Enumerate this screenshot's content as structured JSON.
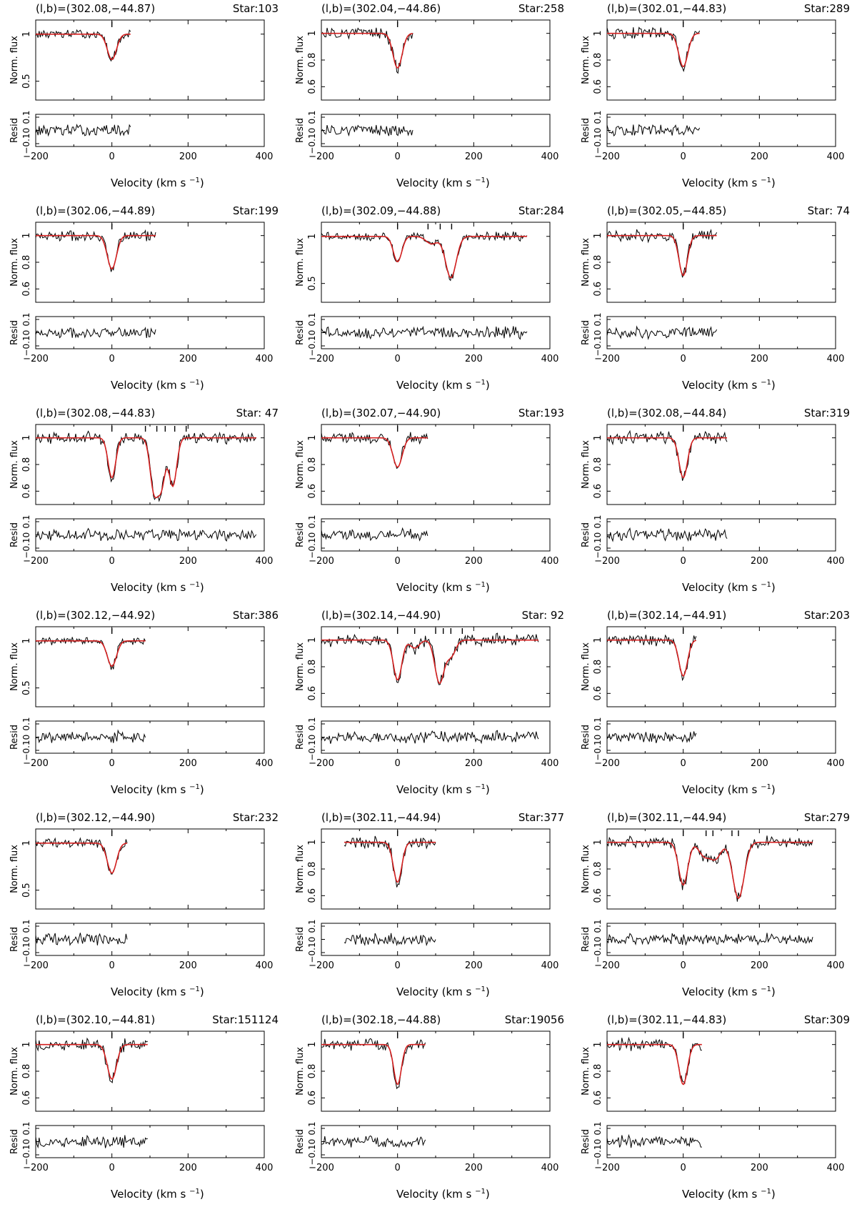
{
  "figure": {
    "yaxis_label_top": "Norm. flux",
    "yaxis_label_bottom": "Resid",
    "xaxis_label_text": "Velocity (km s",
    "xaxis_label_unit_exp": "−1",
    "xaxis_label_close": ")",
    "x_ticks": [
      "−200",
      "0",
      "200",
      "400"
    ],
    "resid_ticks": [
      "−0.1",
      "0",
      "0.1"
    ]
  },
  "colors": {
    "data": "#000000",
    "model": "#d42020",
    "axes": "#000000"
  },
  "chart_data": [
    {
      "type": "line",
      "title": "(l,b)=(302.08,−44.87)",
      "star": "Star:103",
      "xlim": [
        -200,
        400
      ],
      "ylim": [
        0.3,
        1.15
      ],
      "yticks": [
        {
          "v": 0.5,
          "label": "0.5"
        },
        {
          "v": 1,
          "label": "1"
        }
      ],
      "vrange": [
        -200,
        50
      ],
      "components": [
        0
      ],
      "absorptions": [
        {
          "v": 0,
          "depth": 0.27,
          "width": 12
        }
      ]
    },
    {
      "type": "line",
      "title": "(l,b)=(302.04,−44.86)",
      "star": "Star:258",
      "xlim": [
        -200,
        400
      ],
      "ylim": [
        0.5,
        1.1
      ],
      "yticks": [
        {
          "v": 0.6,
          "label": "0.6"
        },
        {
          "v": 0.8,
          "label": "0.8"
        },
        {
          "v": 1,
          "label": "1"
        }
      ],
      "vrange": [
        -200,
        40
      ],
      "components": [
        0
      ],
      "absorptions": [
        {
          "v": 0,
          "depth": 0.26,
          "width": 12
        }
      ]
    },
    {
      "type": "line",
      "title": "(l,b)=(302.01,−44.83)",
      "star": "Star:289",
      "xlim": [
        -200,
        400
      ],
      "ylim": [
        0.5,
        1.1
      ],
      "yticks": [
        {
          "v": 0.6,
          "label": "0.6"
        },
        {
          "v": 0.8,
          "label": "0.8"
        },
        {
          "v": 1,
          "label": "1"
        }
      ],
      "vrange": [
        -200,
        45
      ],
      "components": [
        0
      ],
      "absorptions": [
        {
          "v": 0,
          "depth": 0.25,
          "width": 12
        }
      ]
    },
    {
      "type": "line",
      "title": "(l,b)=(302.06,−44.89)",
      "star": "Star:199",
      "xlim": [
        -200,
        400
      ],
      "ylim": [
        0.5,
        1.1
      ],
      "yticks": [
        {
          "v": 0.6,
          "label": "0.6"
        },
        {
          "v": 0.8,
          "label": "0.8"
        },
        {
          "v": 1,
          "label": "1"
        }
      ],
      "vrange": [
        -200,
        115
      ],
      "components": [
        0
      ],
      "absorptions": [
        {
          "v": 0,
          "depth": 0.25,
          "width": 12
        }
      ]
    },
    {
      "type": "line",
      "title": "(l,b)=(302.09,−44.88)",
      "star": "Star:284",
      "xlim": [
        -200,
        400
      ],
      "ylim": [
        0.3,
        1.15
      ],
      "yticks": [
        {
          "v": 0.5,
          "label": "0.5"
        },
        {
          "v": 1,
          "label": "1"
        }
      ],
      "vrange": [
        -200,
        340
      ],
      "components": [
        0,
        80,
        112,
        142
      ],
      "absorptions": [
        {
          "v": 0,
          "depth": 0.27,
          "width": 11
        },
        {
          "v": 90,
          "depth": 0.08,
          "width": 15
        },
        {
          "v": 140,
          "depth": 0.44,
          "width": 14
        }
      ]
    },
    {
      "type": "line",
      "title": "(l,b)=(302.05,−44.85)",
      "star": "Star: 74",
      "xlim": [
        -200,
        400
      ],
      "ylim": [
        0.5,
        1.1
      ],
      "yticks": [
        {
          "v": 0.6,
          "label": "0.6"
        },
        {
          "v": 0.8,
          "label": "0.8"
        },
        {
          "v": 1,
          "label": "1"
        }
      ],
      "vrange": [
        -200,
        90
      ],
      "components": [
        0
      ],
      "absorptions": [
        {
          "v": 0,
          "depth": 0.3,
          "width": 11
        }
      ]
    },
    {
      "type": "line",
      "title": "(l,b)=(302.08,−44.83)",
      "star": "Star: 47",
      "xlim": [
        -200,
        400
      ],
      "ylim": [
        0.5,
        1.1
      ],
      "yticks": [
        {
          "v": 0.6,
          "label": "0.6"
        },
        {
          "v": 0.8,
          "label": "0.8"
        },
        {
          "v": 1,
          "label": "1"
        }
      ],
      "vrange": [
        -200,
        380
      ],
      "components": [
        0,
        88,
        118,
        140,
        165,
        195
      ],
      "absorptions": [
        {
          "v": 0,
          "depth": 0.3,
          "width": 10
        },
        {
          "v": 110,
          "depth": 0.38,
          "width": 10
        },
        {
          "v": 130,
          "depth": 0.35,
          "width": 10
        },
        {
          "v": 160,
          "depth": 0.36,
          "width": 10
        }
      ]
    },
    {
      "type": "line",
      "title": "(l,b)=(302.07,−44.90)",
      "star": "Star:193",
      "xlim": [
        -200,
        400
      ],
      "ylim": [
        0.5,
        1.1
      ],
      "yticks": [
        {
          "v": 0.6,
          "label": "0.6"
        },
        {
          "v": 0.8,
          "label": "0.8"
        },
        {
          "v": 1,
          "label": "1"
        }
      ],
      "vrange": [
        -200,
        80
      ],
      "components": [
        0
      ],
      "absorptions": [
        {
          "v": 0,
          "depth": 0.22,
          "width": 12
        }
      ]
    },
    {
      "type": "line",
      "title": "(l,b)=(302.08,−44.84)",
      "star": "Star:319",
      "xlim": [
        -200,
        400
      ],
      "ylim": [
        0.5,
        1.1
      ],
      "yticks": [
        {
          "v": 0.6,
          "label": "0.6"
        },
        {
          "v": 0.8,
          "label": "0.8"
        },
        {
          "v": 1,
          "label": "1"
        }
      ],
      "vrange": [
        -200,
        115
      ],
      "components": [
        0
      ],
      "absorptions": [
        {
          "v": 0,
          "depth": 0.3,
          "width": 11
        }
      ]
    },
    {
      "type": "line",
      "title": "(l,b)=(302.12,−44.92)",
      "star": "Star:386",
      "xlim": [
        -200,
        400
      ],
      "ylim": [
        0.3,
        1.15
      ],
      "yticks": [
        {
          "v": 0.5,
          "label": "0.5"
        },
        {
          "v": 1,
          "label": "1"
        }
      ],
      "vrange": [
        -200,
        90
      ],
      "components": [
        0
      ],
      "absorptions": [
        {
          "v": 0,
          "depth": 0.27,
          "width": 12
        }
      ]
    },
    {
      "type": "line",
      "title": "(l,b)=(302.14,−44.90)",
      "star": "Star: 92",
      "xlim": [
        -200,
        400
      ],
      "ylim": [
        0.5,
        1.1
      ],
      "yticks": [
        {
          "v": 0.6,
          "label": "0.6"
        },
        {
          "v": 0.8,
          "label": "0.8"
        },
        {
          "v": 1,
          "label": "1"
        }
      ],
      "vrange": [
        -200,
        370
      ],
      "components": [
        0,
        45,
        100,
        120,
        140,
        170
      ],
      "absorptions": [
        {
          "v": 0,
          "depth": 0.3,
          "width": 11
        },
        {
          "v": 45,
          "depth": 0.06,
          "width": 12
        },
        {
          "v": 110,
          "depth": 0.32,
          "width": 12
        },
        {
          "v": 140,
          "depth": 0.12,
          "width": 12
        }
      ]
    },
    {
      "type": "line",
      "title": "(l,b)=(302.14,−44.91)",
      "star": "Star:203",
      "xlim": [
        -200,
        400
      ],
      "ylim": [
        0.5,
        1.1
      ],
      "yticks": [
        {
          "v": 0.6,
          "label": "0.6"
        },
        {
          "v": 0.8,
          "label": "0.8"
        },
        {
          "v": 1,
          "label": "1"
        }
      ],
      "vrange": [
        -200,
        35
      ],
      "components": [
        0
      ],
      "absorptions": [
        {
          "v": 0,
          "depth": 0.27,
          "width": 11
        }
      ]
    },
    {
      "type": "line",
      "title": "(l,b)=(302.12,−44.90)",
      "star": "Star:232",
      "xlim": [
        -200,
        400
      ],
      "ylim": [
        0.3,
        1.15
      ],
      "yticks": [
        {
          "v": 0.5,
          "label": "0.5"
        },
        {
          "v": 1,
          "label": "1"
        }
      ],
      "vrange": [
        -200,
        40
      ],
      "components": [
        0
      ],
      "absorptions": [
        {
          "v": 0,
          "depth": 0.32,
          "width": 12
        }
      ]
    },
    {
      "type": "line",
      "title": "(l,b)=(302.11,−44.94)",
      "star": "Star:377",
      "xlim": [
        -200,
        400
      ],
      "ylim": [
        0.5,
        1.1
      ],
      "yticks": [
        {
          "v": 0.6,
          "label": "0.6"
        },
        {
          "v": 0.8,
          "label": "0.8"
        },
        {
          "v": 1,
          "label": "1"
        }
      ],
      "vrange": [
        -140,
        100
      ],
      "components": [
        0
      ],
      "absorptions": [
        {
          "v": 0,
          "depth": 0.3,
          "width": 11
        }
      ]
    },
    {
      "type": "line",
      "title": "(l,b)=(302.11,−44.94)",
      "star": "Star:279",
      "xlim": [
        -200,
        400
      ],
      "ylim": [
        0.5,
        1.1
      ],
      "yticks": [
        {
          "v": 0.6,
          "label": "0.6"
        },
        {
          "v": 0.8,
          "label": "0.8"
        },
        {
          "v": 1,
          "label": "1"
        }
      ],
      "vrange": [
        -200,
        340
      ],
      "components": [
        0,
        60,
        78,
        128,
        145
      ],
      "absorptions": [
        {
          "v": 0,
          "depth": 0.32,
          "width": 12
        },
        {
          "v": 55,
          "depth": 0.1,
          "width": 14
        },
        {
          "v": 85,
          "depth": 0.12,
          "width": 14
        },
        {
          "v": 145,
          "depth": 0.42,
          "width": 15
        }
      ]
    },
    {
      "type": "line",
      "title": "(l,b)=(302.10,−44.81)",
      "star": "Star:151124",
      "xlim": [
        -200,
        400
      ],
      "ylim": [
        0.5,
        1.1
      ],
      "yticks": [
        {
          "v": 0.6,
          "label": "0.6"
        },
        {
          "v": 0.8,
          "label": "0.8"
        },
        {
          "v": 1,
          "label": "1"
        }
      ],
      "vrange": [
        -200,
        95
      ],
      "components": [
        0
      ],
      "absorptions": [
        {
          "v": 0,
          "depth": 0.26,
          "width": 12
        }
      ]
    },
    {
      "type": "line",
      "title": "(l,b)=(302.18,−44.88)",
      "star": "Star:19056",
      "xlim": [
        -200,
        400
      ],
      "ylim": [
        0.5,
        1.1
      ],
      "yticks": [
        {
          "v": 0.6,
          "label": "0.6"
        },
        {
          "v": 0.8,
          "label": "0.8"
        },
        {
          "v": 1,
          "label": "1"
        }
      ],
      "vrange": [
        -200,
        75
      ],
      "components": [
        0
      ],
      "absorptions": [
        {
          "v": 0,
          "depth": 0.3,
          "width": 10
        }
      ]
    },
    {
      "type": "line",
      "title": "(l,b)=(302.11,−44.83)",
      "star": "Star:309",
      "xlim": [
        -200,
        400
      ],
      "ylim": [
        0.5,
        1.1
      ],
      "yticks": [
        {
          "v": 0.6,
          "label": "0.6"
        },
        {
          "v": 0.8,
          "label": "0.8"
        },
        {
          "v": 1,
          "label": "1"
        }
      ],
      "vrange": [
        -200,
        50
      ],
      "components": [
        0
      ],
      "absorptions": [
        {
          "v": 0,
          "depth": 0.3,
          "width": 11
        }
      ]
    }
  ]
}
